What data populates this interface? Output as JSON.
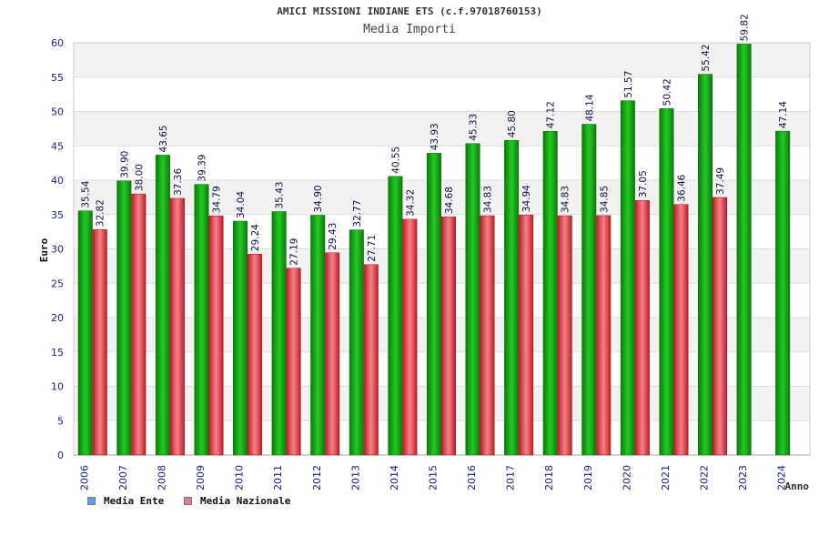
{
  "title": "AMICI MISSIONI INDIANE ETS (c.f.97018760153)",
  "subtitle": "Media Importi",
  "colors": {
    "ente": "#1aa31a",
    "nazionale": "#e0303a",
    "legend_ente": "#5aa0e6",
    "legend_nazionale": "#d5809a",
    "axis_text": "#1a1a8c"
  },
  "chart_data": {
    "type": "bar",
    "title": "AMICI MISSIONI INDIANE ETS (c.f.97018760153)",
    "subtitle": "Media Importi",
    "xlabel": "Anno",
    "ylabel": "Euro",
    "ylim": [
      0,
      60
    ],
    "yticks": [
      0,
      5,
      10,
      15,
      20,
      25,
      30,
      35,
      40,
      45,
      50,
      55,
      60
    ],
    "grid": true,
    "legend_position": "bottom-left",
    "categories": [
      "2006",
      "2007",
      "2008",
      "2009",
      "2010",
      "2011",
      "2012",
      "2013",
      "2014",
      "2015",
      "2016",
      "2017",
      "2018",
      "2019",
      "2020",
      "2021",
      "2022",
      "2023",
      "2024"
    ],
    "series": [
      {
        "name": "Media Ente",
        "values": [
          35.54,
          39.9,
          43.65,
          39.39,
          34.04,
          35.43,
          34.9,
          32.77,
          40.55,
          43.93,
          45.33,
          45.8,
          47.12,
          48.14,
          51.57,
          50.42,
          55.42,
          59.82,
          47.14
        ],
        "labels": [
          "35.54",
          "39.90",
          "43.65",
          "39.39",
          "34.04",
          "35.43",
          "34.90",
          "32.77",
          "40.55",
          "43.93",
          "45.33",
          "45.80",
          "47.12",
          "48.14",
          "51.57",
          "50.42",
          "55.42",
          "59.82",
          "47.14"
        ]
      },
      {
        "name": "Media Nazionale",
        "values": [
          32.82,
          38.0,
          37.36,
          34.79,
          29.24,
          27.19,
          29.43,
          27.71,
          34.32,
          34.68,
          34.83,
          34.94,
          34.83,
          34.85,
          37.05,
          36.46,
          37.49,
          null,
          null
        ],
        "labels": [
          "32.82",
          "38.00",
          "37.36",
          "34.79",
          "29.24",
          "27.19",
          "29.43",
          "27.71",
          "34.32",
          "34.68",
          "34.83",
          "34.94",
          "34.83",
          "34.85",
          "37.05",
          "36.46",
          "37.49",
          "",
          ""
        ]
      }
    ]
  }
}
